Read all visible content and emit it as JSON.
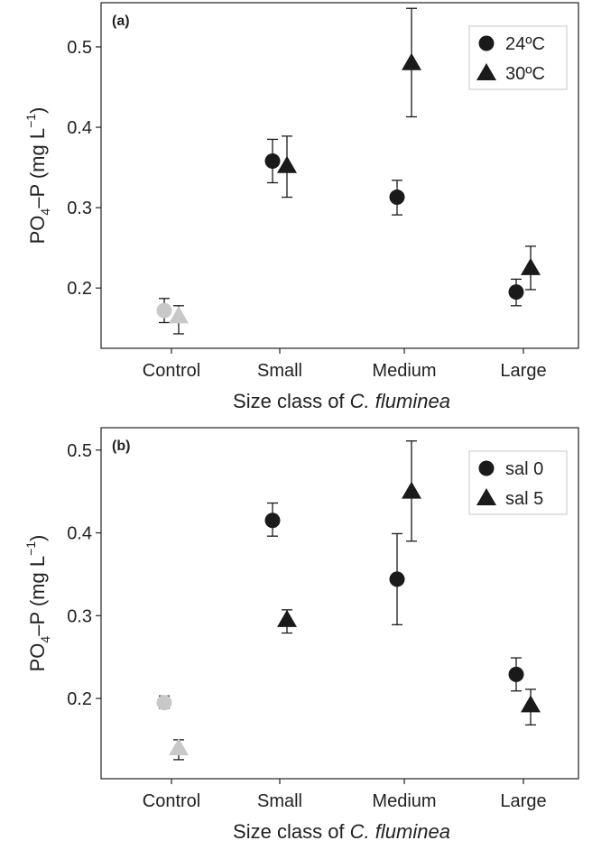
{
  "colors": {
    "ink": "#1a1a1a",
    "control": "#c8c8c8",
    "frame": "#222222",
    "legend_border": "#d0d0d0"
  },
  "chart_data": [
    {
      "type": "scatter",
      "panel_label": "(a)",
      "xlabel_prefix": "Size class of ",
      "xlabel_italic": "C. fluminea",
      "ylabel": "PO4–P (mg L−1)",
      "ylabel_parts": {
        "main": "PO",
        "sub": "4",
        "mid": "–P (mg L",
        "sup": "−1",
        "end": ")"
      },
      "categories": [
        "Control",
        "Small",
        "Medium",
        "Large"
      ],
      "yticks": [
        "0.2",
        "0.3",
        "0.4",
        "0.5"
      ],
      "ytick_values": [
        0.2,
        0.3,
        0.4,
        0.5
      ],
      "ylim": [
        0.125,
        0.555
      ],
      "legend_position": "top-right",
      "series": [
        {
          "name": "24ºC",
          "marker": "circle",
          "values": [
            0.172,
            0.358,
            0.313,
            0.195
          ],
          "err_low": [
            0.157,
            0.331,
            0.291,
            0.178
          ],
          "err_high": [
            0.187,
            0.385,
            0.334,
            0.211
          ]
        },
        {
          "name": "30ºC",
          "marker": "triangle",
          "values": [
            0.165,
            0.352,
            0.48,
            0.225
          ],
          "err_low": [
            0.143,
            0.313,
            0.413,
            0.198
          ],
          "err_high": [
            0.178,
            0.389,
            0.548,
            0.252
          ]
        }
      ],
      "control_gray": true
    },
    {
      "type": "scatter",
      "panel_label": "(b)",
      "xlabel_prefix": "Size class of ",
      "xlabel_italic": "C. fluminea",
      "ylabel": "PO4–P (mg L−1)",
      "ylabel_parts": {
        "main": "PO",
        "sub": "4",
        "mid": "–P (mg L",
        "sup": "−1",
        "end": ")"
      },
      "categories": [
        "Control",
        "Small",
        "Medium",
        "Large"
      ],
      "yticks": [
        "0.2",
        "0.3",
        "0.4",
        "0.5"
      ],
      "ytick_values": [
        0.2,
        0.3,
        0.4,
        0.5
      ],
      "ylim": [
        0.103,
        0.527
      ],
      "legend_position": "top-right",
      "series": [
        {
          "name": "sal 0",
          "marker": "circle",
          "values": [
            0.195,
            0.415,
            0.344,
            0.229
          ],
          "err_low": [
            0.188,
            0.396,
            0.289,
            0.209
          ],
          "err_high": [
            0.203,
            0.436,
            0.399,
            0.249
          ]
        },
        {
          "name": "sal 5",
          "marker": "triangle",
          "values": [
            0.14,
            0.295,
            0.45,
            0.192
          ],
          "err_low": [
            0.126,
            0.279,
            0.39,
            0.168
          ],
          "err_high": [
            0.15,
            0.307,
            0.511,
            0.211
          ]
        }
      ],
      "control_gray": true
    }
  ]
}
